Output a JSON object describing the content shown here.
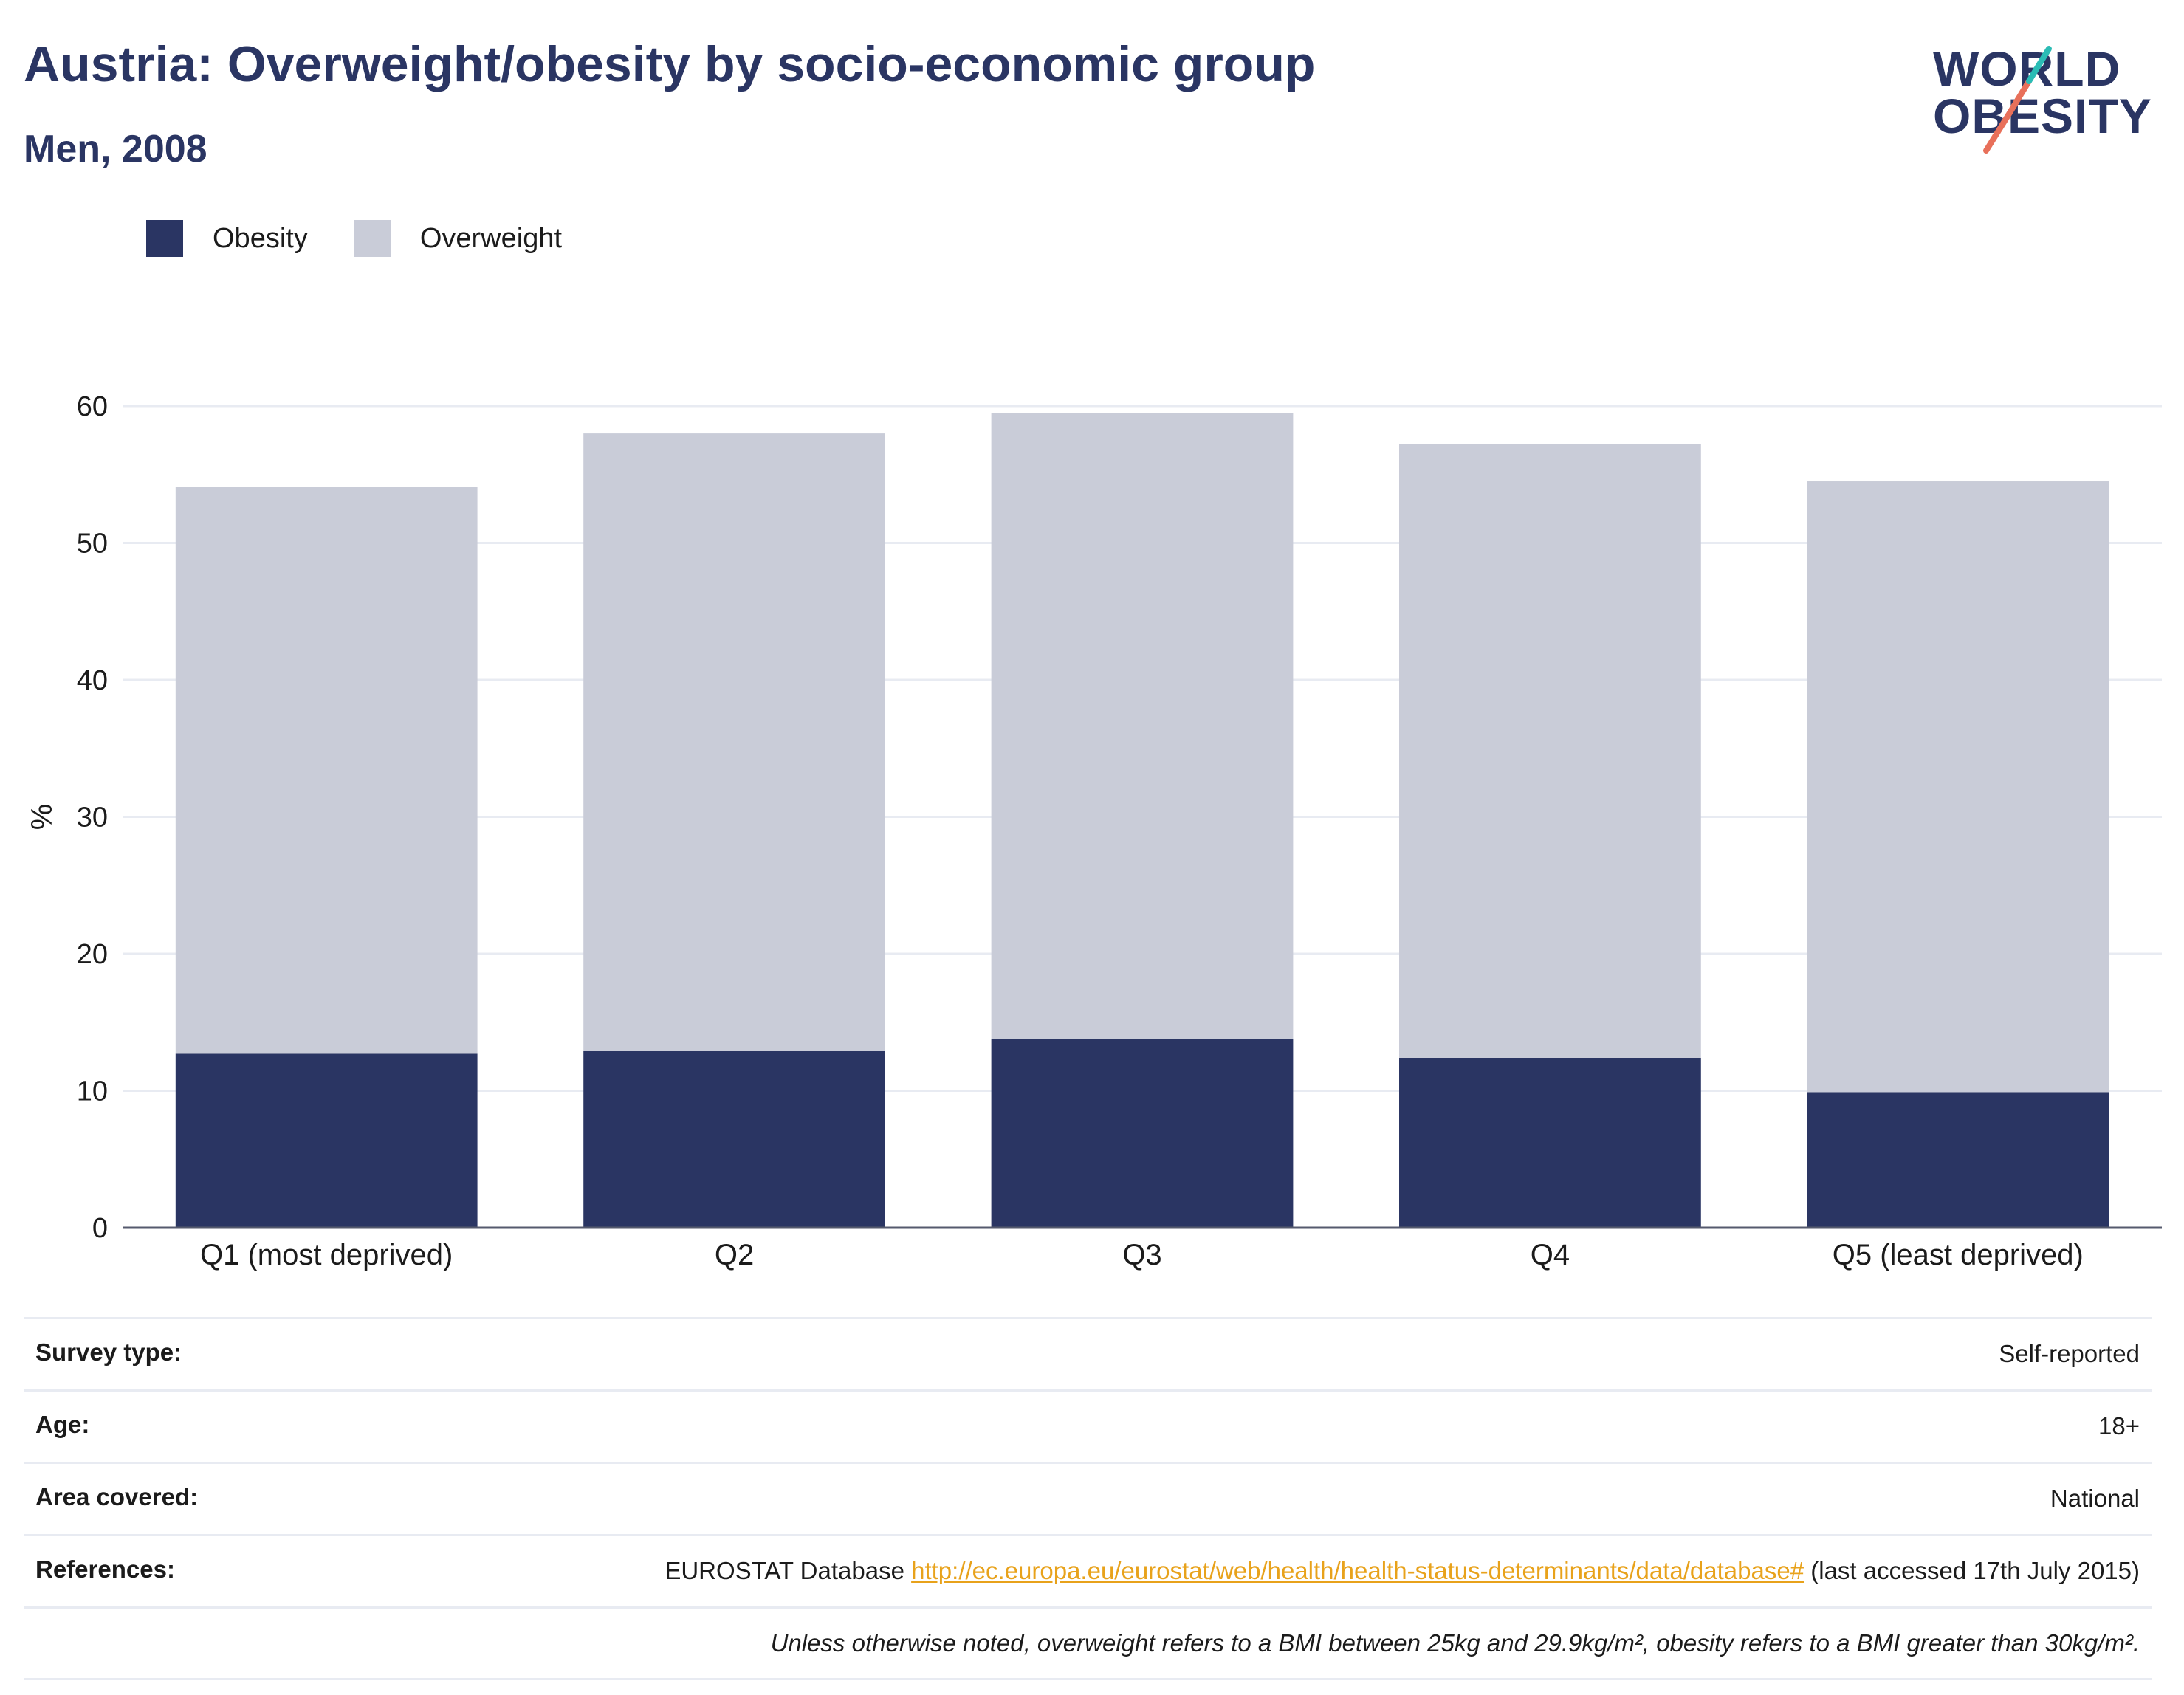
{
  "header": {
    "title": "Austria: Overweight/obesity by socio-economic group",
    "subtitle": "Men, 2008"
  },
  "logo": {
    "line1": "WORLD",
    "line2": "OBESITY"
  },
  "legend": [
    {
      "label": "Obesity",
      "color": "#2a3563"
    },
    {
      "label": "Overweight",
      "color": "#c9ccd8"
    }
  ],
  "chart_data": {
    "type": "bar",
    "stacked": true,
    "categories": [
      "Q1 (most deprived)",
      "Q2",
      "Q3",
      "Q4",
      "Q5 (least deprived)"
    ],
    "series": [
      {
        "name": "Obesity",
        "values": [
          12.7,
          12.9,
          13.8,
          12.4,
          9.9
        ],
        "color": "#2a3563"
      },
      {
        "name": "Overweight",
        "values": [
          41.4,
          45.1,
          45.7,
          44.8,
          44.6
        ],
        "color": "#c9ccd8"
      }
    ],
    "ylabel": "%",
    "ylim": [
      0,
      60
    ],
    "yticks": [
      0,
      10,
      20,
      30,
      40,
      50,
      60
    ],
    "grid": true,
    "legend_position": "top-left"
  },
  "info": {
    "survey_type_label": "Survey type:",
    "survey_type_value": "Self-reported",
    "age_label": "Age:",
    "age_value": "18+",
    "area_label": "Area covered:",
    "area_value": "National",
    "references_label": "References:",
    "references_prefix": "EUROSTAT Database",
    "references_link": "http://ec.europa.eu/eurostat/web/health/health-status-determinants/data/database#",
    "references_suffix": "(last accessed 17th July 2015)",
    "note": "Unless otherwise noted, overweight refers to a BMI between 25kg and 29.9kg/m², obesity refers to a BMI greater than 30kg/m²."
  }
}
